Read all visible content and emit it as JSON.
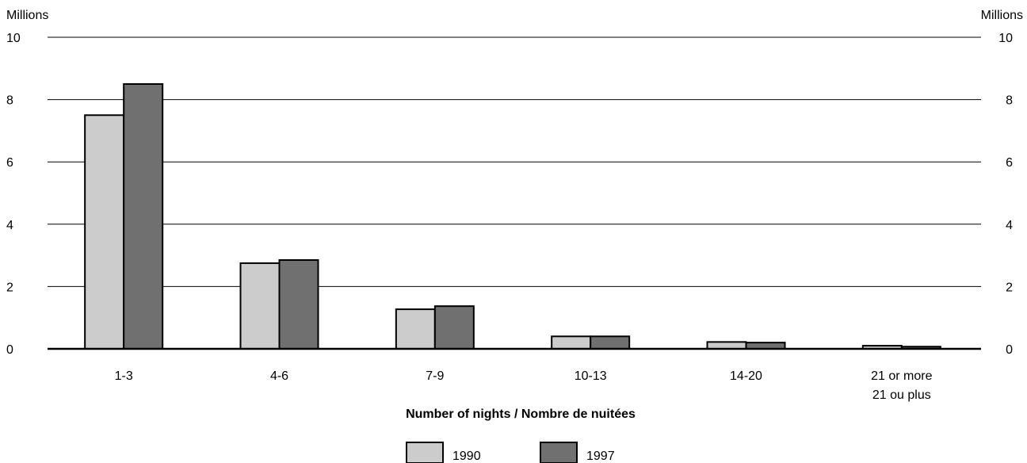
{
  "chart_data": {
    "type": "bar",
    "title": "",
    "ylabel_left": "Millions",
    "ylabel_right": "Millions",
    "xlabel": "Number of nights / Nombre de nuitées",
    "ylim": [
      0,
      10
    ],
    "yticks": [
      0,
      2,
      4,
      6,
      8,
      10
    ],
    "grid": true,
    "legend_position": "bottom-center",
    "categories": [
      [
        "1-3"
      ],
      [
        "4-6"
      ],
      [
        "7-9"
      ],
      [
        "10-13"
      ],
      [
        "14-20"
      ],
      [
        "21 or more",
        "21 ou plus"
      ]
    ],
    "series": [
      {
        "name": "1990",
        "color": "#cccccc",
        "values": [
          7.5,
          2.75,
          1.27,
          0.4,
          0.22,
          0.1
        ]
      },
      {
        "name": "1997",
        "color": "#707070",
        "values": [
          8.5,
          2.85,
          1.37,
          0.4,
          0.2,
          0.07
        ]
      }
    ]
  }
}
